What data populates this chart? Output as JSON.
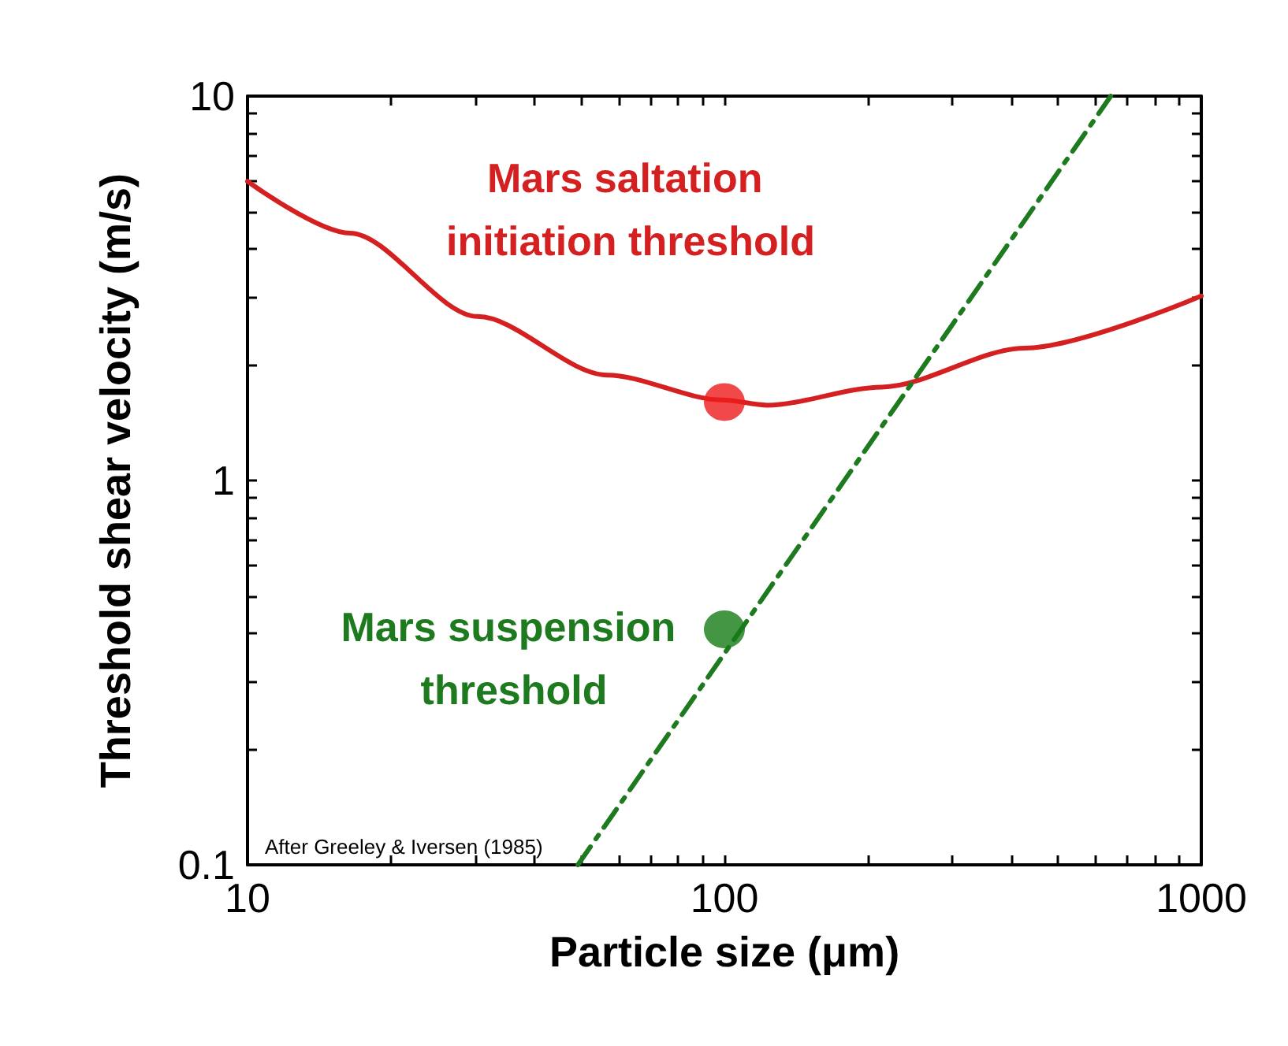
{
  "chart_data": {
    "type": "line",
    "xlabel": "Particle size (μm)",
    "ylabel": "Threshold shear velocity (m/s)",
    "log": "xy",
    "xlim": [
      10,
      1000
    ],
    "ylim": [
      0.1,
      10
    ],
    "xticks": [
      10,
      {
        "value": 20,
        "label": null
      },
      {
        "value": 30,
        "label": null
      },
      {
        "value": 40,
        "label": null
      },
      {
        "value": 50,
        "label": null
      },
      {
        "value": 60,
        "label": null
      },
      {
        "value": 70,
        "label": null
      },
      {
        "value": 80,
        "label": null
      },
      {
        "value": 90,
        "label": null
      },
      100,
      {
        "value": 200,
        "label": null
      },
      {
        "value": 300,
        "label": null
      },
      {
        "value": 400,
        "label": null
      },
      {
        "value": 500,
        "label": null
      },
      {
        "value": 600,
        "label": null
      },
      {
        "value": 700,
        "label": null
      },
      {
        "value": 800,
        "label": null
      },
      {
        "value": 900,
        "label": null
      },
      1000
    ],
    "yticks": [
      0.1,
      {
        "value": 0.2,
        "label": null
      },
      {
        "value": 0.3,
        "label": null
      },
      {
        "value": 0.4,
        "label": null
      },
      {
        "value": 0.5,
        "label": null
      },
      {
        "value": 0.6,
        "label": null
      },
      {
        "value": 0.7,
        "label": null
      },
      {
        "value": 0.8,
        "label": null
      },
      {
        "value": 0.9,
        "label": null
      },
      1,
      {
        "value": 2,
        "label": null
      },
      {
        "value": 3,
        "label": null
      },
      {
        "value": 4,
        "label": null
      },
      {
        "value": 5,
        "label": null
      },
      {
        "value": 6,
        "label": null
      },
      {
        "value": 7,
        "label": null
      },
      {
        "value": 8,
        "label": null
      },
      {
        "value": 9,
        "label": null
      },
      10
    ],
    "grid": false,
    "legend": false,
    "series": [
      {
        "name": "Mars saltation initiation threshold",
        "color": "#d42020",
        "line_style": "solid",
        "marker": "none",
        "x": [
          10,
          16.4,
          30.4,
          56.8,
          98.9,
          123,
          214,
          426,
          1000
        ],
        "values": [
          6.0,
          4.4,
          2.67,
          1.88,
          1.62,
          1.57,
          1.75,
          2.21,
          3.02
        ]
      },
      {
        "name": "Mars suspension threshold",
        "color": "#1e7a1e",
        "line_style": "dashed",
        "marker": "none",
        "x": [
          49.3,
          646
        ],
        "values": [
          0.1,
          10
        ]
      },
      {
        "type": "scatter",
        "marker": "circle",
        "color": "#ee1c1c",
        "x": [
          100
        ],
        "values": [
          1.6
        ]
      },
      {
        "type": "scatter",
        "marker": "circle",
        "color": "#157a15",
        "x": [
          100
        ],
        "values": [
          0.41
        ]
      }
    ],
    "annotations": [
      "After Greeley & Iversen (1985)"
    ]
  }
}
